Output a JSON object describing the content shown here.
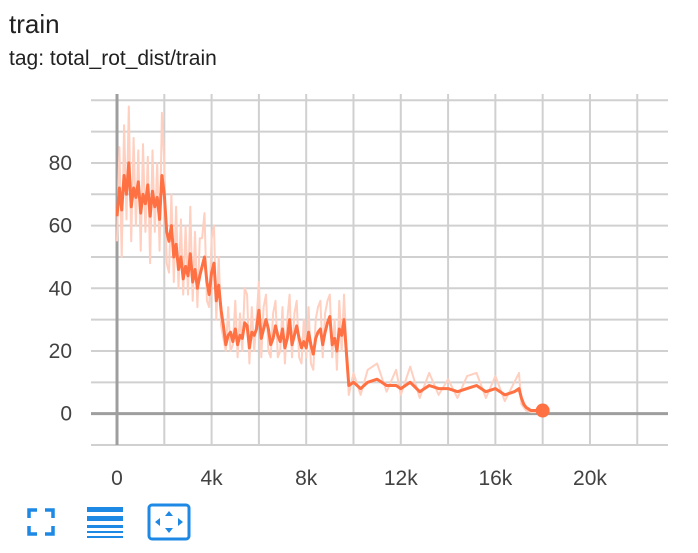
{
  "card": {
    "title": "train",
    "tag": "tag: total_rot_dist/train"
  },
  "colors": {
    "smoothed": "#ff7043",
    "raw": "#ffcfc0",
    "grid": "#d0d0d0",
    "axis": "#9e9e9e",
    "toolbar_icon": "#1e88e5"
  },
  "icons": {
    "expand": "fullscreen-icon",
    "log_scale": "lines-icon",
    "fit_domain": "fit-domain-icon"
  },
  "chart_data": {
    "type": "line",
    "title": "",
    "xlabel": "",
    "ylabel": "",
    "xlim": [
      -1100,
      23300
    ],
    "ylim": [
      -10,
      102
    ],
    "grid": true,
    "x_ticks": [
      0,
      4000,
      8000,
      12000,
      16000,
      20000
    ],
    "x_tick_labels": [
      "0",
      "4k",
      "8k",
      "12k",
      "16k",
      "20k"
    ],
    "y_ticks": [
      0,
      20,
      40,
      60,
      80
    ],
    "y_tick_labels": [
      "0",
      "20",
      "40",
      "60",
      "80"
    ],
    "series": [
      {
        "x": [
          0,
          100,
          200,
          300,
          400,
          500,
          600,
          700,
          800,
          900,
          1000,
          1100,
          1200,
          1300,
          1400,
          1500,
          1600,
          1700,
          1800,
          1900,
          2000,
          2100,
          2200,
          2300,
          2400,
          2500,
          2600,
          2700,
          2800,
          2900,
          3000,
          3100,
          3200,
          3300,
          3400,
          3500,
          3600,
          3700,
          3800,
          3900,
          4000,
          4100,
          4200,
          4300,
          4400,
          4500,
          4600,
          4700,
          4800,
          4900,
          5000,
          5100,
          5200,
          5300,
          5400,
          5500,
          5600,
          5700,
          5800,
          5900,
          6000,
          6100,
          6200,
          6300,
          6400,
          6500,
          6600,
          6700,
          6800,
          6900,
          7000,
          7100,
          7200,
          7300,
          7400,
          7500,
          7600,
          7700,
          7800,
          7900,
          8000,
          8100,
          8200,
          8300,
          8400,
          8500,
          8600,
          8700,
          8800,
          8900,
          9000,
          9100,
          9200,
          9300,
          9400,
          9500,
          9600,
          9800,
          10000,
          10300,
          10600,
          11000,
          11400,
          11800,
          12000,
          12400,
          12800,
          13200,
          13600,
          14000,
          14400,
          14800,
          15200,
          15600,
          16000,
          16400,
          16800,
          17000,
          17100,
          17200,
          17300,
          17500,
          17700,
          17900,
          18000
        ],
        "y_smoothed": [
          63,
          72,
          65,
          76,
          70,
          80,
          66,
          72,
          69,
          74,
          64,
          70,
          67,
          73,
          63,
          71,
          66,
          69,
          62,
          76,
          70,
          58,
          55,
          60,
          50,
          54,
          46,
          50,
          43,
          47,
          44,
          51,
          42,
          46,
          40,
          44,
          47,
          50,
          42,
          38,
          45,
          48,
          36,
          41,
          33,
          28,
          22,
          25,
          26,
          23,
          27,
          22,
          25,
          24,
          29,
          28,
          21,
          26,
          25,
          27,
          33,
          24,
          27,
          30,
          27,
          22,
          24,
          28,
          25,
          23,
          27,
          21,
          24,
          30,
          22,
          25,
          28,
          24,
          21,
          23,
          21,
          26,
          22,
          19,
          24,
          26,
          27,
          22,
          26,
          29,
          31,
          22,
          24,
          20,
          27,
          25,
          30,
          9,
          10,
          8,
          10,
          11,
          9,
          9,
          8,
          10,
          7,
          9,
          8,
          8,
          7,
          8,
          9,
          7,
          8,
          6,
          7,
          8,
          5,
          3,
          2,
          1,
          1,
          1.5,
          1
        ],
        "y_raw": [
          55,
          85,
          50,
          92,
          62,
          98,
          55,
          88,
          60,
          84,
          52,
          86,
          58,
          82,
          48,
          84,
          58,
          80,
          52,
          96,
          80,
          48,
          45,
          70,
          42,
          66,
          40,
          62,
          38,
          60,
          38,
          66,
          36,
          58,
          34,
          56,
          56,
          64,
          36,
          34,
          56,
          60,
          30,
          50,
          28,
          24,
          20,
          34,
          20,
          22,
          36,
          18,
          32,
          20,
          40,
          38,
          16,
          34,
          20,
          30,
          42,
          18,
          34,
          38,
          20,
          18,
          32,
          36,
          18,
          20,
          34,
          16,
          30,
          38,
          18,
          32,
          36,
          18,
          16,
          30,
          18,
          34,
          16,
          14,
          30,
          34,
          36,
          18,
          32,
          36,
          38,
          18,
          30,
          14,
          36,
          20,
          38,
          6,
          13,
          6,
          14,
          16,
          7,
          14,
          6,
          15,
          5,
          13,
          6,
          11,
          5,
          12,
          13,
          5,
          12,
          4,
          10,
          13,
          3,
          2,
          1,
          0.5,
          0.5,
          2,
          1
        ]
      }
    ]
  }
}
